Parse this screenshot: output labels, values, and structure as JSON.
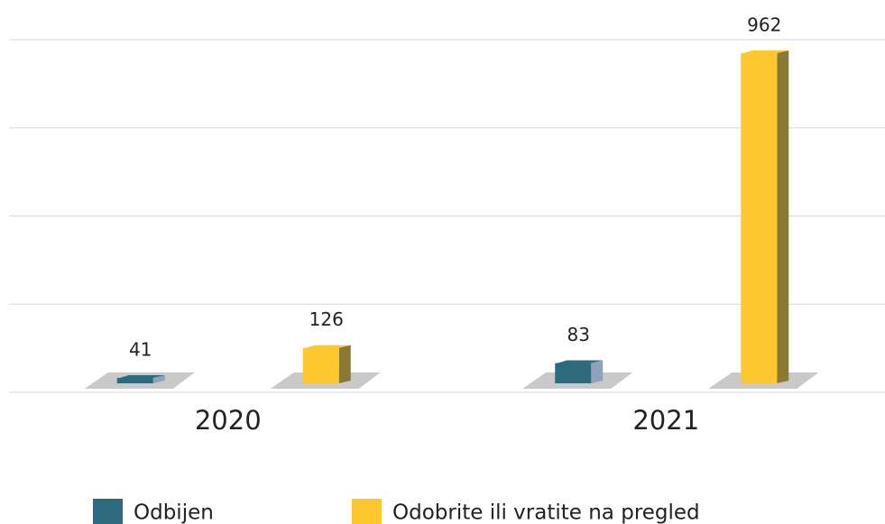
{
  "chart_data": {
    "type": "bar3d",
    "categories": [
      "2020",
      "2021"
    ],
    "series": [
      {
        "name": "Odbijen",
        "color": "#2e6a7d",
        "side_color": "#8fa2bb",
        "values": [
          41,
          83
        ]
      },
      {
        "name": "Odobrite ili vratite na pregled",
        "color": "#fdc82f",
        "side_color": "#8a7835",
        "values": [
          126,
          962
        ]
      }
    ],
    "ylim": [
      0,
      1000
    ],
    "yticks": [
      0,
      250,
      500,
      750,
      1000
    ],
    "grid": true
  }
}
